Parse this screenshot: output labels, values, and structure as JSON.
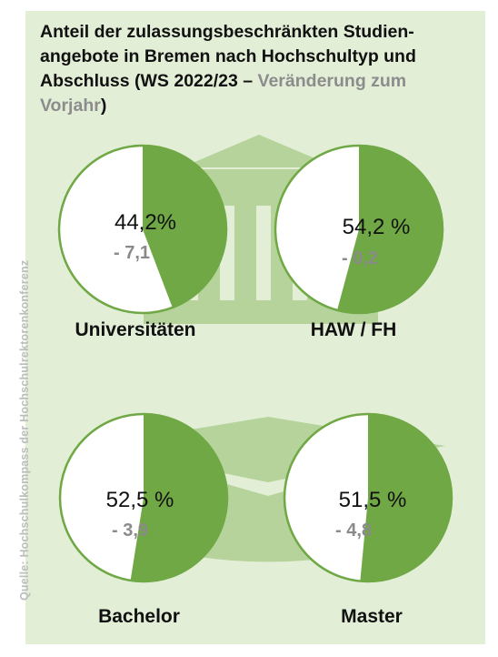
{
  "title": {
    "main": "Anteil der zulassungsbeschränkten Studien-angebote in Bremen nach Hochschultyp und Abschluss (WS 2022/23 – ",
    "highlight": "Veränderung zum Vorjahr",
    "close": ")"
  },
  "source": "Quelle: Hochschulkompass der Hochschulrektorenkonferenz",
  "colors": {
    "panel": "#e3eed7",
    "accent": "#6fa844",
    "circle_fill": "#ffffff",
    "icon_fill": "#b5d39b",
    "delta_text": "#8a8a8a"
  },
  "icons": [
    "university-building-icon",
    "graduation-cap-icon"
  ],
  "chart_data": {
    "type": "pie",
    "unit": "%",
    "charts": [
      {
        "label": "Universitäten",
        "value": 44.2,
        "value_text": "44,2%",
        "change": -7.1,
        "change_text": "- 7,1"
      },
      {
        "label": "HAW / FH",
        "value": 54.2,
        "value_text": "54,2 %",
        "change": -0.2,
        "change_text": "- 0,2"
      },
      {
        "label": "Bachelor",
        "value": 52.5,
        "value_text": "52,5 %",
        "change": -3.9,
        "change_text": "- 3,9"
      },
      {
        "label": "Master",
        "value": 51.5,
        "value_text": "51,5 %",
        "change": -4.8,
        "change_text": "- 4,8"
      }
    ]
  }
}
